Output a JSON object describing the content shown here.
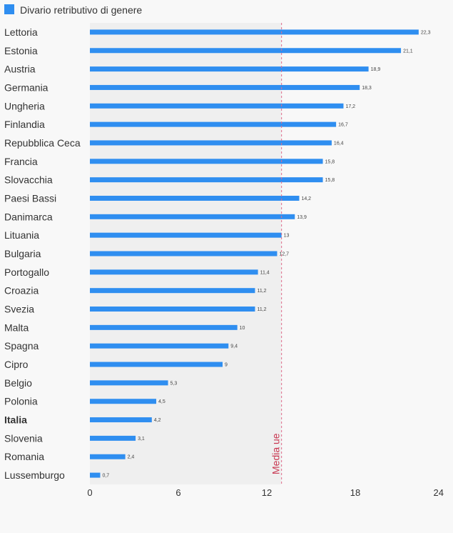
{
  "legend": {
    "label": "Divario retributivo di genere"
  },
  "reference": {
    "label": "Media ue",
    "value": 13
  },
  "colors": {
    "bar": "#2f8ef0",
    "reference_line": "#e06a8a",
    "reference_label": "#c8354f",
    "shaded_region": "#efefef",
    "background": "#f8f8f8",
    "text": "#333333"
  },
  "chart_data": {
    "type": "bar",
    "orientation": "horizontal",
    "xlim": [
      0,
      24
    ],
    "x_ticks": [
      "0",
      "6",
      "12",
      "18",
      "24"
    ],
    "grid": false,
    "legend_position": "top-left",
    "highlighted_category": "Italia",
    "series": [
      {
        "name": "Divario retributivo di genere"
      }
    ],
    "categories": [
      "Lettoria",
      "Estonia",
      "Austria",
      "Germania",
      "Ungheria",
      "Finlandia",
      "Repubblica Ceca",
      "Francia",
      "Slovacchia",
      "Paesi Bassi",
      "Danimarca",
      "Lituania",
      "Bulgaria",
      "Portogallo",
      "Croazia",
      "Svezia",
      "Malta",
      "Spagna",
      "Cipro",
      "Belgio",
      "Polonia",
      "Italia",
      "Slovenia",
      "Romania",
      "Lussemburgo"
    ],
    "values": [
      22.3,
      21.1,
      18.9,
      18.3,
      17.2,
      16.7,
      16.4,
      15.8,
      15.8,
      14.2,
      13.9,
      13,
      12.7,
      11.4,
      11.2,
      11.2,
      10,
      9.4,
      9,
      5.3,
      4.5,
      4.2,
      3.1,
      2.4,
      0.7
    ],
    "value_labels": [
      "22,3",
      "21,1",
      "18,9",
      "18,3",
      "17,2",
      "16,7",
      "16,4",
      "15,8",
      "15,8",
      "14,2",
      "13,9",
      "13",
      "12,7",
      "11,4",
      "11,2",
      "11,2",
      "10",
      "9,4",
      "9",
      "5,3",
      "4,5",
      "4,2",
      "3,1",
      "2,4",
      "0,7"
    ]
  }
}
